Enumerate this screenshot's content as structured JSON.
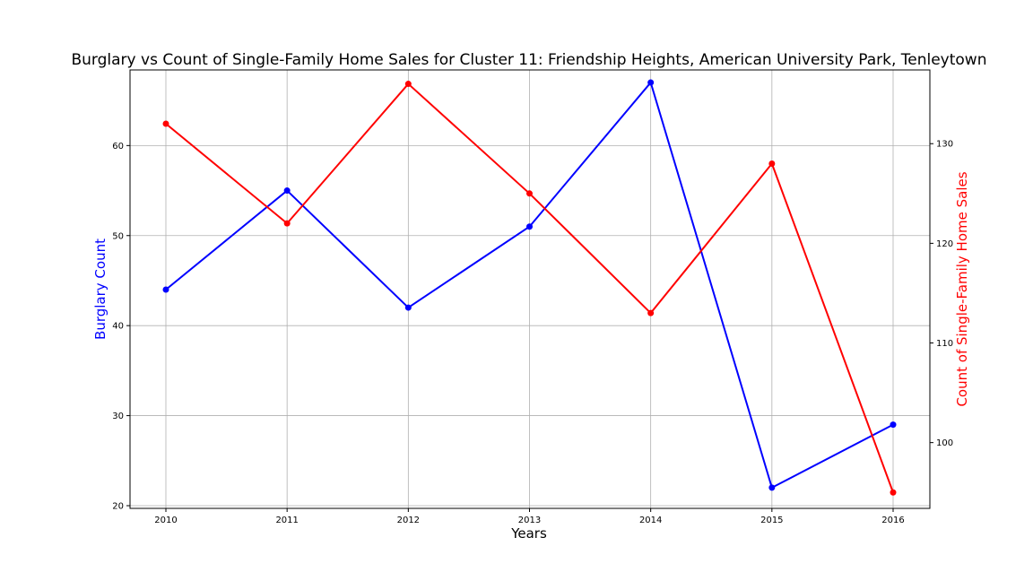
{
  "chart_data": {
    "type": "line",
    "title": "Burglary vs Count of Single-Family Home Sales for Cluster 11: Friendship Heights, American University Park, Tenleytown",
    "xlabel": "Years",
    "ylabel_left": "Burglary Count",
    "ylabel_right": "Count of Single-Family Home Sales",
    "x": [
      "2010",
      "2011",
      "2012",
      "2013",
      "2014",
      "2015",
      "2016"
    ],
    "y_left_ticks": [
      "20",
      "30",
      "40",
      "50",
      "60"
    ],
    "y_right_ticks": [
      "100",
      "110",
      "120",
      "130"
    ],
    "ylim_left": [
      19.7,
      68.4
    ],
    "ylim_right": [
      93.4,
      137.4
    ],
    "grid": true,
    "series": [
      {
        "axis": "left",
        "color": "#0000ff",
        "values": [
          44,
          55,
          42,
          51,
          67,
          22,
          29
        ]
      },
      {
        "axis": "right",
        "color": "#ff0000",
        "values": [
          132,
          122,
          136,
          125,
          113,
          128,
          95
        ]
      }
    ]
  }
}
